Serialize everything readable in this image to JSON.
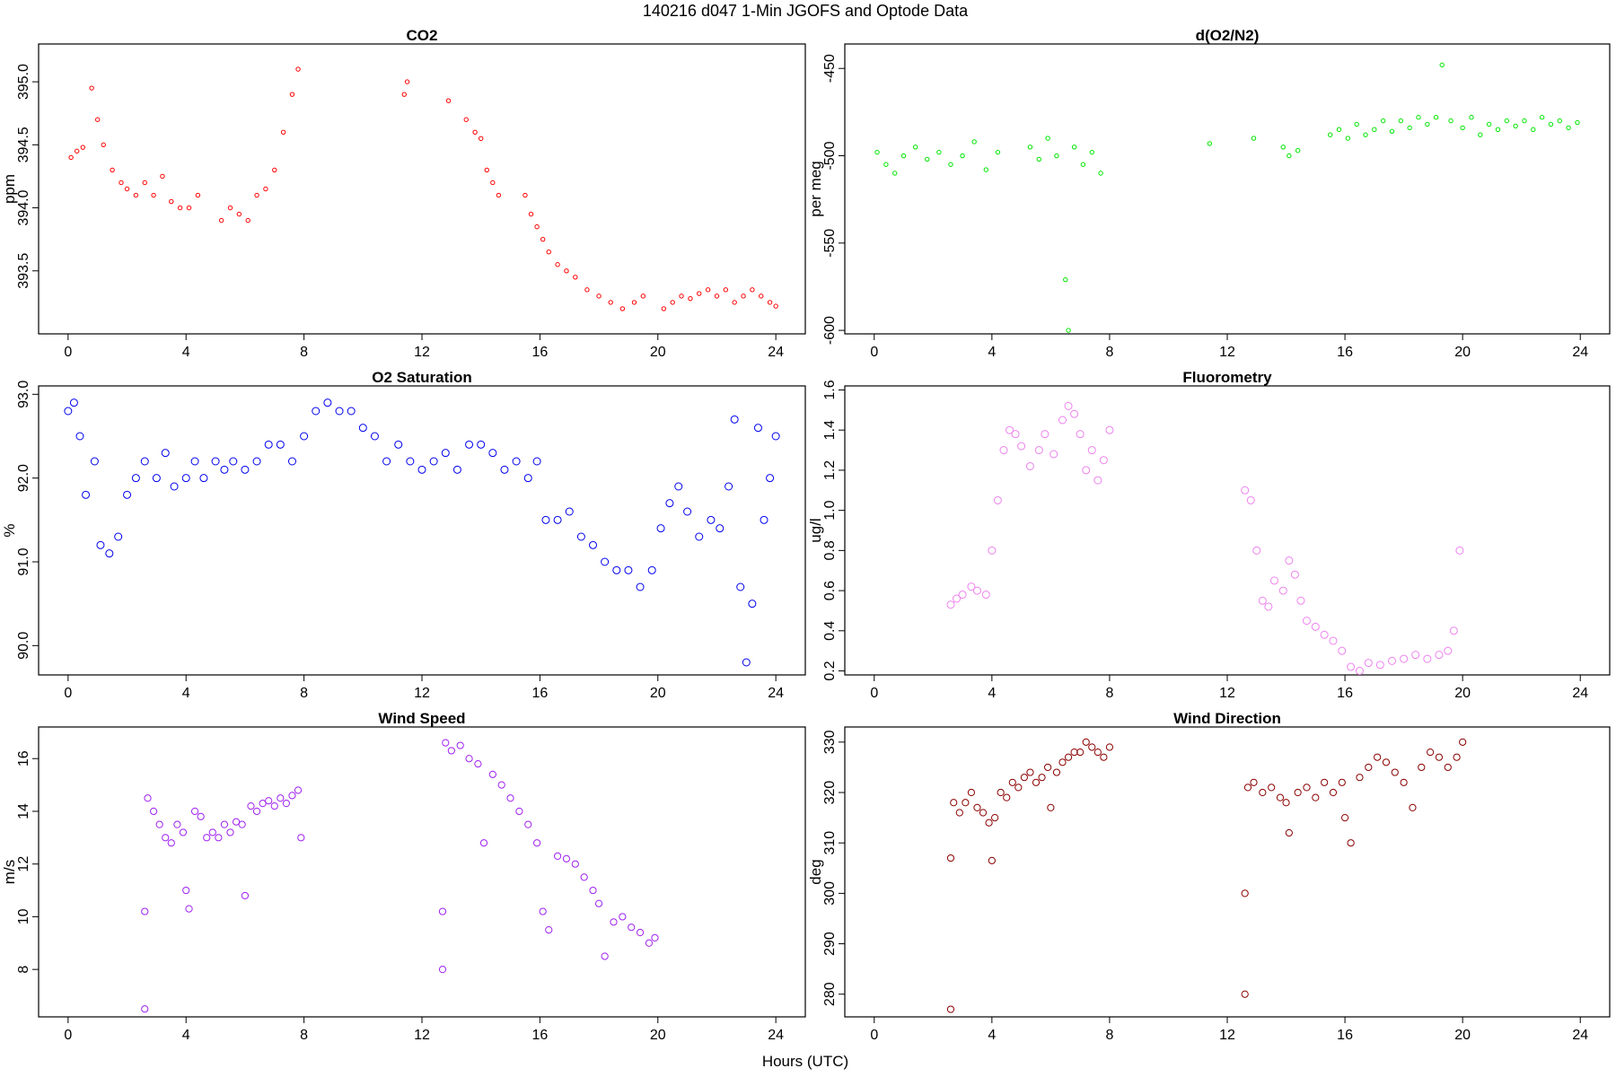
{
  "figure": {
    "title": "140216   d047   1-Min  JGOFS and Optode Data",
    "xlabel": "Hours (UTC)"
  },
  "chart_data": [
    {
      "type": "scatter",
      "title": "CO2",
      "ylabel": "ppm",
      "xlim": [
        -1,
        25
      ],
      "ylim": [
        393.0,
        395.3
      ],
      "xticks": [
        0,
        4,
        8,
        12,
        16,
        20,
        24
      ],
      "yticks": [
        393.5,
        394.0,
        394.5,
        395.0
      ],
      "ytick_labels": [
        "393.5",
        "394.0",
        "394.5",
        "395.0"
      ],
      "color": "#ff0000",
      "marker_size": 2.2,
      "x": [
        0.1,
        0.3,
        0.5,
        0.8,
        1.0,
        1.2,
        1.5,
        1.8,
        2.0,
        2.3,
        2.6,
        2.9,
        3.2,
        3.5,
        3.8,
        4.1,
        4.4,
        5.2,
        5.5,
        5.8,
        6.1,
        6.4,
        6.7,
        7.0,
        7.3,
        7.6,
        7.8,
        11.4,
        11.5,
        12.9,
        13.5,
        13.8,
        14.0,
        14.2,
        14.4,
        14.6,
        15.5,
        15.7,
        15.9,
        16.1,
        16.3,
        16.6,
        16.9,
        17.2,
        17.6,
        18.0,
        18.4,
        18.8,
        19.2,
        19.5,
        20.2,
        20.5,
        20.8,
        21.1,
        21.4,
        21.7,
        22.0,
        22.3,
        22.6,
        22.9,
        23.2,
        23.5,
        23.8,
        24.0
      ],
      "y": [
        394.4,
        394.45,
        394.48,
        394.95,
        394.7,
        394.5,
        394.3,
        394.2,
        394.15,
        394.1,
        394.2,
        394.1,
        394.25,
        394.05,
        394.0,
        394.0,
        394.1,
        393.9,
        394.0,
        393.95,
        393.9,
        394.1,
        394.15,
        394.3,
        394.6,
        394.9,
        395.1,
        394.9,
        395.0,
        394.85,
        394.7,
        394.6,
        394.55,
        394.3,
        394.2,
        394.1,
        394.1,
        393.95,
        393.85,
        393.75,
        393.65,
        393.55,
        393.5,
        393.45,
        393.35,
        393.3,
        393.25,
        393.2,
        393.25,
        393.3,
        393.2,
        393.25,
        393.3,
        393.28,
        393.32,
        393.35,
        393.3,
        393.35,
        393.25,
        393.3,
        393.35,
        393.3,
        393.25,
        393.22
      ]
    },
    {
      "type": "scatter",
      "title": "d(O2/N2)",
      "ylabel": "per meg",
      "xlim": [
        -1,
        25
      ],
      "ylim": [
        -602,
        -436
      ],
      "xticks": [
        0,
        4,
        8,
        12,
        16,
        20,
        24
      ],
      "yticks": [
        -600,
        -550,
        -500,
        -450
      ],
      "ytick_labels": [
        "-600",
        "-550",
        "-500",
        "-450"
      ],
      "color": "#00e600",
      "marker_size": 2.2,
      "x": [
        0.1,
        0.4,
        0.7,
        1.0,
        1.4,
        1.8,
        2.2,
        2.6,
        3.0,
        3.4,
        3.8,
        4.2,
        5.3,
        5.6,
        5.9,
        6.2,
        6.5,
        6.6,
        6.8,
        7.1,
        7.4,
        7.7,
        11.4,
        12.9,
        13.9,
        14.1,
        14.4,
        15.5,
        15.8,
        16.1,
        16.4,
        16.7,
        17.0,
        17.3,
        17.6,
        17.9,
        18.2,
        18.5,
        18.8,
        19.1,
        19.3,
        19.6,
        20.0,
        20.3,
        20.6,
        20.9,
        21.2,
        21.5,
        21.8,
        22.1,
        22.4,
        22.7,
        23.0,
        23.3,
        23.6,
        23.9
      ],
      "y": [
        -498,
        -505,
        -510,
        -500,
        -495,
        -502,
        -498,
        -505,
        -500,
        -492,
        -508,
        -498,
        -495,
        -502,
        -490,
        -500,
        -571,
        -600,
        -495,
        -505,
        -498,
        -510,
        -493,
        -490,
        -495,
        -500,
        -497,
        -488,
        -485,
        -490,
        -482,
        -488,
        -485,
        -480,
        -486,
        -480,
        -484,
        -478,
        -482,
        -478,
        -448,
        -480,
        -484,
        -478,
        -488,
        -482,
        -485,
        -480,
        -483,
        -480,
        -485,
        -478,
        -482,
        -480,
        -484,
        -481
      ]
    },
    {
      "type": "scatter",
      "title": "O2 Saturation",
      "ylabel": "%",
      "xlim": [
        -1,
        25
      ],
      "ylim": [
        89.65,
        93.1
      ],
      "xticks": [
        0,
        4,
        8,
        12,
        16,
        20,
        24
      ],
      "yticks": [
        90.0,
        91.0,
        92.0,
        93.0
      ],
      "ytick_labels": [
        "90.0",
        "91.0",
        "92.0",
        "93.0"
      ],
      "color": "#0000ee",
      "marker_size": 4,
      "x": [
        0.0,
        0.2,
        0.4,
        0.6,
        0.9,
        1.1,
        1.4,
        1.7,
        2.0,
        2.3,
        2.6,
        3.0,
        3.3,
        3.6,
        4.0,
        4.3,
        4.6,
        5.0,
        5.3,
        5.6,
        6.0,
        6.4,
        6.8,
        7.2,
        7.6,
        8.0,
        8.4,
        8.8,
        9.2,
        9.6,
        10.0,
        10.4,
        10.8,
        11.2,
        11.6,
        12.0,
        12.4,
        12.8,
        13.2,
        13.6,
        14.0,
        14.4,
        14.8,
        15.2,
        15.6,
        15.9,
        16.2,
        16.6,
        17.0,
        17.4,
        17.8,
        18.2,
        18.6,
        19.0,
        19.4,
        19.8,
        20.1,
        20.4,
        20.7,
        21.0,
        21.4,
        21.8,
        22.1,
        22.4,
        22.6,
        22.8,
        23.0,
        23.2,
        23.4,
        23.6,
        23.8,
        24.0
      ],
      "y": [
        92.8,
        92.9,
        92.5,
        91.8,
        92.2,
        91.2,
        91.1,
        91.3,
        91.8,
        92.0,
        92.2,
        92.0,
        92.3,
        91.9,
        92.0,
        92.2,
        92.0,
        92.2,
        92.1,
        92.2,
        92.1,
        92.2,
        92.4,
        92.4,
        92.2,
        92.5,
        92.8,
        92.9,
        92.8,
        92.8,
        92.6,
        92.5,
        92.2,
        92.4,
        92.2,
        92.1,
        92.2,
        92.3,
        92.1,
        92.4,
        92.4,
        92.3,
        92.1,
        92.2,
        92.0,
        92.2,
        91.5,
        91.5,
        91.6,
        91.3,
        91.2,
        91.0,
        90.9,
        90.9,
        90.7,
        90.9,
        91.4,
        91.7,
        91.9,
        91.6,
        91.3,
        91.5,
        91.4,
        91.9,
        92.7,
        90.7,
        89.8,
        90.5,
        92.6,
        91.5,
        92.0,
        92.5
      ]
    },
    {
      "type": "scatter",
      "title": "Fluorometry",
      "ylabel": "ug/l",
      "xlim": [
        -1,
        25
      ],
      "ylim": [
        0.18,
        1.62
      ],
      "xticks": [
        0,
        4,
        8,
        12,
        16,
        20,
        24
      ],
      "yticks": [
        0.2,
        0.4,
        0.6,
        0.8,
        1.0,
        1.2,
        1.4,
        1.6
      ],
      "ytick_labels": [
        "0.2",
        "0.4",
        "0.6",
        "0.8",
        "1.0",
        "1.2",
        "1.4",
        "1.6"
      ],
      "color": "#ee82ee",
      "marker_size": 4,
      "x": [
        2.6,
        2.8,
        3.0,
        3.3,
        3.5,
        3.8,
        4.0,
        4.2,
        4.4,
        4.6,
        4.8,
        5.0,
        5.3,
        5.6,
        5.8,
        6.1,
        6.4,
        6.6,
        6.8,
        7.0,
        7.2,
        7.4,
        7.6,
        7.8,
        8.0,
        12.6,
        12.8,
        13.0,
        13.2,
        13.4,
        13.6,
        13.9,
        14.1,
        14.3,
        14.5,
        14.7,
        15.0,
        15.3,
        15.6,
        15.9,
        16.2,
        16.5,
        16.8,
        17.2,
        17.6,
        18.0,
        18.4,
        18.8,
        19.2,
        19.5,
        19.7,
        19.9
      ],
      "y": [
        0.53,
        0.56,
        0.58,
        0.62,
        0.6,
        0.58,
        0.8,
        1.05,
        1.3,
        1.4,
        1.38,
        1.32,
        1.22,
        1.3,
        1.38,
        1.28,
        1.45,
        1.52,
        1.48,
        1.38,
        1.2,
        1.3,
        1.15,
        1.25,
        1.4,
        1.1,
        1.05,
        0.8,
        0.55,
        0.52,
        0.65,
        0.6,
        0.75,
        0.68,
        0.55,
        0.45,
        0.42,
        0.38,
        0.35,
        0.3,
        0.22,
        0.2,
        0.24,
        0.23,
        0.25,
        0.26,
        0.28,
        0.26,
        0.28,
        0.3,
        0.4,
        0.8
      ]
    },
    {
      "type": "scatter",
      "title": "Wind Speed",
      "ylabel": "m/s",
      "xlim": [
        -1,
        25
      ],
      "ylim": [
        6.2,
        17.2
      ],
      "xticks": [
        0,
        4,
        8,
        12,
        16,
        20,
        24
      ],
      "yticks": [
        8,
        10,
        12,
        14,
        16
      ],
      "ytick_labels": [
        "8",
        "10",
        "12",
        "14",
        "16"
      ],
      "color": "#a020f0",
      "marker_size": 3.6,
      "x": [
        2.6,
        2.6,
        2.7,
        2.9,
        3.1,
        3.3,
        3.5,
        3.7,
        3.9,
        4.0,
        4.1,
        4.3,
        4.5,
        4.7,
        4.9,
        5.1,
        5.3,
        5.5,
        5.7,
        5.9,
        6.0,
        6.2,
        6.4,
        6.6,
        6.8,
        7.0,
        7.2,
        7.4,
        7.6,
        7.8,
        7.9,
        12.7,
        12.7,
        12.8,
        13.0,
        13.3,
        13.6,
        13.9,
        14.1,
        14.4,
        14.7,
        15.0,
        15.3,
        15.6,
        15.9,
        16.1,
        16.3,
        16.6,
        16.9,
        17.2,
        17.5,
        17.8,
        18.0,
        18.2,
        18.5,
        18.8,
        19.1,
        19.4,
        19.7,
        19.9
      ],
      "y": [
        6.5,
        10.2,
        14.5,
        14.0,
        13.5,
        13.0,
        12.8,
        13.5,
        13.2,
        11.0,
        10.3,
        14.0,
        13.8,
        13.0,
        13.2,
        13.0,
        13.5,
        13.2,
        13.6,
        13.5,
        10.8,
        14.2,
        14.0,
        14.3,
        14.4,
        14.2,
        14.5,
        14.3,
        14.6,
        14.8,
        13.0,
        10.2,
        8.0,
        16.6,
        16.3,
        16.5,
        16.0,
        15.8,
        12.8,
        15.4,
        15.0,
        14.5,
        14.0,
        13.5,
        12.8,
        10.2,
        9.5,
        12.3,
        12.2,
        12.0,
        11.5,
        11.0,
        10.5,
        8.5,
        9.8,
        10.0,
        9.6,
        9.4,
        9.0,
        9.2
      ]
    },
    {
      "type": "scatter",
      "title": "Wind Direction",
      "ylabel": "deg",
      "xlim": [
        -1,
        25
      ],
      "ylim": [
        275.5,
        333
      ],
      "xticks": [
        0,
        4,
        8,
        12,
        16,
        20,
        24
      ],
      "yticks": [
        280,
        290,
        300,
        310,
        320,
        330
      ],
      "ytick_labels": [
        "280",
        "290",
        "300",
        "310",
        "320",
        "330"
      ],
      "color": "#8b0000",
      "marker_size": 3.6,
      "x": [
        2.6,
        2.6,
        2.7,
        2.9,
        3.1,
        3.3,
        3.5,
        3.7,
        3.9,
        4.0,
        4.1,
        4.3,
        4.5,
        4.7,
        4.9,
        5.1,
        5.3,
        5.5,
        5.7,
        5.9,
        6.0,
        6.2,
        6.4,
        6.6,
        6.8,
        7.0,
        7.2,
        7.4,
        7.6,
        7.8,
        8.0,
        12.6,
        12.6,
        12.7,
        12.9,
        13.2,
        13.5,
        13.8,
        14.0,
        14.1,
        14.4,
        14.7,
        15.0,
        15.3,
        15.6,
        15.9,
        16.0,
        16.2,
        16.5,
        16.8,
        17.1,
        17.4,
        17.7,
        18.0,
        18.3,
        18.6,
        18.9,
        19.2,
        19.5,
        19.8,
        20.0
      ],
      "y": [
        277,
        307,
        318,
        316,
        318,
        320,
        317,
        316,
        314,
        306.5,
        315,
        320,
        319,
        322,
        321,
        323,
        324,
        322,
        323,
        325,
        317,
        324,
        326,
        327,
        328,
        328,
        330,
        329,
        328,
        327,
        329,
        280,
        300,
        321,
        322,
        320,
        321,
        319,
        318,
        312,
        320,
        321,
        319,
        322,
        320,
        322,
        315,
        310,
        323,
        325,
        327,
        326,
        324,
        322,
        317,
        325,
        328,
        327,
        325,
        327,
        330
      ]
    }
  ]
}
